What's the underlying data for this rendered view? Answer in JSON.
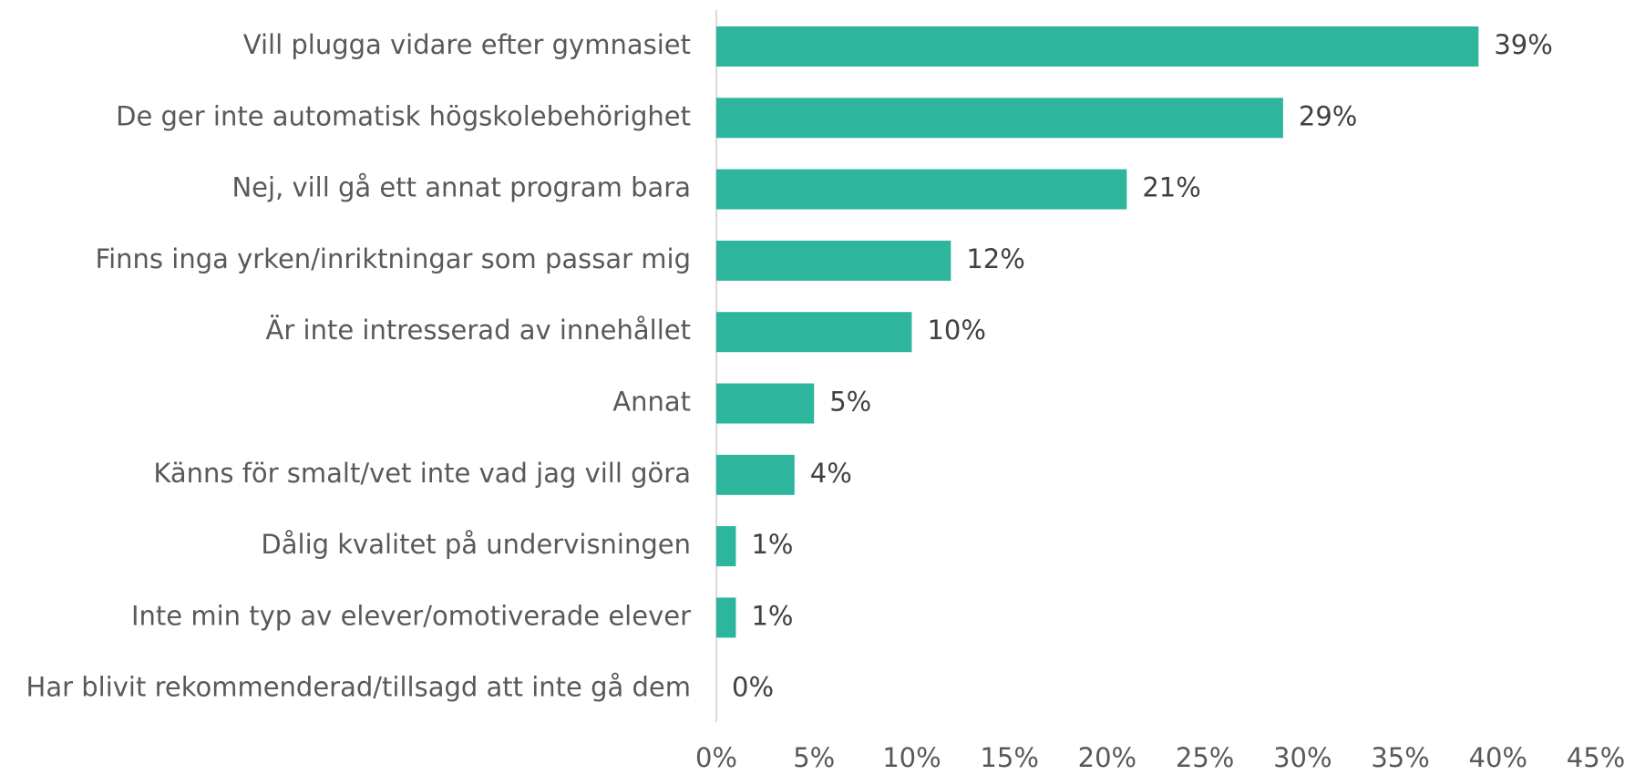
{
  "chart_data": {
    "type": "bar",
    "orientation": "horizontal",
    "categories": [
      "Vill plugga vidare efter gymnasiet",
      "De ger inte automatisk högskolebehörighet",
      "Nej, vill gå ett annat program bara",
      "Finns inga yrken/inriktningar som passar mig",
      "Är inte intresserad av innehållet",
      "Annat",
      "Känns för smalt/vet inte vad jag vill göra",
      "Dålig kvalitet på undervisningen",
      "Inte min typ av elever/omotiverade elever",
      "Har blivit rekommenderad/tillsagd att inte gå dem"
    ],
    "values": [
      39,
      29,
      21,
      12,
      10,
      5,
      4,
      1,
      1,
      0
    ],
    "value_labels": [
      "39%",
      "29%",
      "21%",
      "12%",
      "10%",
      "5%",
      "4%",
      "1%",
      "1%",
      "0%"
    ],
    "color": "#2db59e",
    "xlim": [
      0,
      45
    ],
    "xticks": [
      {
        "value": 0,
        "label": "0%"
      },
      {
        "value": 5,
        "label": "5%"
      },
      {
        "value": 10,
        "label": "10%"
      },
      {
        "value": 15,
        "label": "15%"
      },
      {
        "value": 20,
        "label": "20%"
      },
      {
        "value": 25,
        "label": "25%"
      },
      {
        "value": 30,
        "label": "30%"
      },
      {
        "value": 35,
        "label": "35%"
      },
      {
        "value": 40,
        "label": "40%"
      },
      {
        "value": 45,
        "label": "45%"
      }
    ],
    "grid": false
  }
}
